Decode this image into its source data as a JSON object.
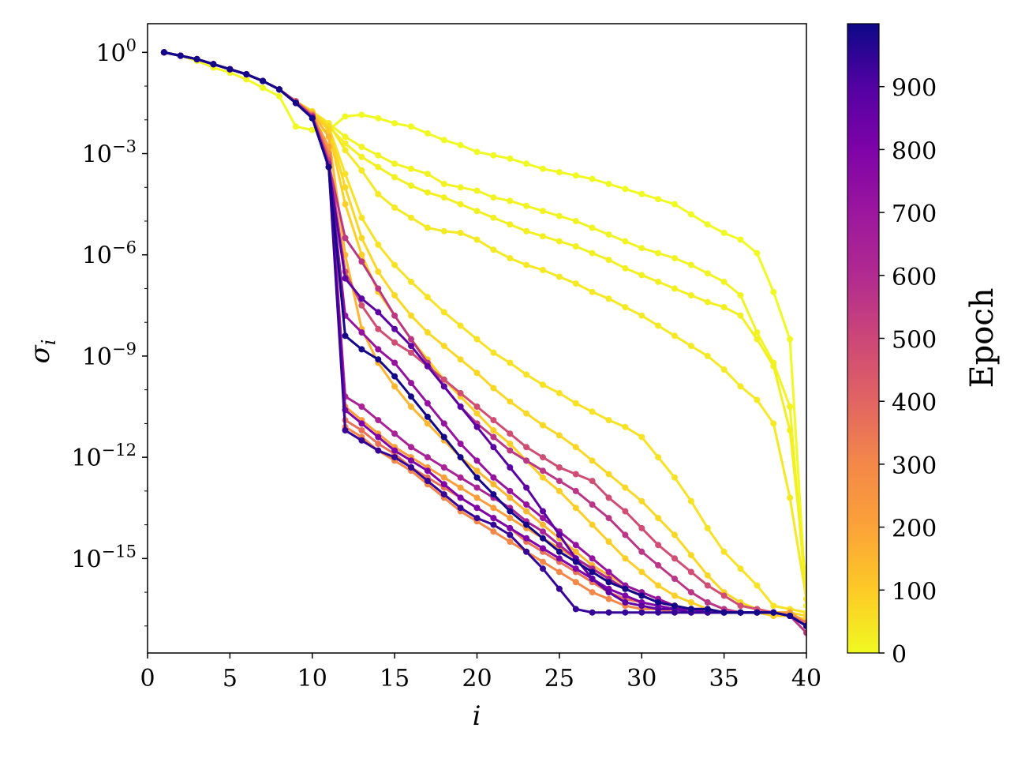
{
  "chart_data": {
    "type": "line",
    "xlabel": "i",
    "ylabel": "σ_i",
    "xlim": [
      0,
      40
    ],
    "ylim_log10": [
      -17.8,
      0.85
    ],
    "y_scale": "log",
    "grid": false,
    "x_ticks": [
      0,
      5,
      10,
      15,
      20,
      25,
      30,
      35,
      40
    ],
    "x_tick_labels": [
      "0",
      "5",
      "10",
      "15",
      "20",
      "25",
      "30",
      "35",
      "40"
    ],
    "y_ticks_log10": [
      0,
      -3,
      -6,
      -9,
      -12,
      -15
    ],
    "y_tick_base": "10",
    "y_tick_exponents": [
      "0",
      "−3",
      "−6",
      "−9",
      "−12",
      "−15"
    ],
    "colorbar": {
      "label": "Epoch",
      "colormap": "plasma",
      "range": [
        0,
        1000
      ],
      "ticks": [
        0,
        100,
        200,
        300,
        400,
        500,
        600,
        700,
        800,
        900
      ],
      "tick_labels": [
        "0",
        "100",
        "200",
        "300",
        "400",
        "500",
        "600",
        "700",
        "800",
        "900"
      ]
    },
    "series_note_values_are_log10_sigma": true,
    "series": [
      {
        "epoch": 0,
        "values": [
          0,
          -0.1,
          -0.25,
          -0.45,
          -0.6,
          -0.8,
          -1.05,
          -1.3,
          -2.2,
          -2.3,
          -2.3,
          -1.9,
          -1.85,
          -1.95,
          -2.1,
          -2.2,
          -2.4,
          -2.6,
          -2.75,
          -2.95,
          -3.05,
          -3.15,
          -3.3,
          -3.45,
          -3.55,
          -3.65,
          -3.75,
          -3.9,
          -4.05,
          -4.2,
          -4.35,
          -4.5,
          -4.8,
          -5.1,
          -5.35,
          -5.55,
          -5.95,
          -7.1,
          -8.5,
          -16.4
        ]
      },
      {
        "epoch": 10,
        "values": [
          0,
          -0.1,
          -0.2,
          -0.35,
          -0.5,
          -0.65,
          -0.85,
          -1.1,
          -1.45,
          -1.8,
          -2.1,
          -2.5,
          -2.8,
          -3.05,
          -3.3,
          -3.45,
          -3.6,
          -3.9,
          -4.0,
          -4.1,
          -4.3,
          -4.4,
          -4.55,
          -4.7,
          -4.85,
          -5.0,
          -5.2,
          -5.4,
          -5.6,
          -5.8,
          -5.95,
          -6.1,
          -6.3,
          -6.55,
          -6.8,
          -7.2,
          -8.3,
          -9.2,
          -10.5,
          -16.4
        ]
      },
      {
        "epoch": 20,
        "values": [
          0,
          -0.1,
          -0.2,
          -0.35,
          -0.5,
          -0.65,
          -0.85,
          -1.1,
          -1.45,
          -1.75,
          -2.2,
          -2.7,
          -3.1,
          -3.4,
          -3.7,
          -3.95,
          -4.15,
          -4.3,
          -4.5,
          -4.7,
          -4.9,
          -5.1,
          -5.3,
          -5.45,
          -5.6,
          -5.75,
          -5.95,
          -6.15,
          -6.4,
          -6.6,
          -6.8,
          -7.0,
          -7.2,
          -7.4,
          -7.55,
          -7.8,
          -8.5,
          -9.3,
          -11.2,
          -15.8
        ]
      },
      {
        "epoch": 35,
        "values": [
          0,
          -0.1,
          -0.2,
          -0.35,
          -0.5,
          -0.65,
          -0.85,
          -1.1,
          -1.45,
          -1.75,
          -2.1,
          -2.9,
          -3.5,
          -4.2,
          -4.6,
          -4.9,
          -5.2,
          -5.3,
          -5.35,
          -5.55,
          -5.85,
          -6.1,
          -6.3,
          -6.45,
          -6.65,
          -6.85,
          -7.1,
          -7.3,
          -7.55,
          -7.8,
          -8.1,
          -8.4,
          -8.7,
          -9.0,
          -9.4,
          -9.9,
          -10.3,
          -11.0,
          -13.2,
          -16.2
        ]
      },
      {
        "epoch": 50,
        "values": [
          0,
          -0.1,
          -0.2,
          -0.35,
          -0.5,
          -0.65,
          -0.85,
          -1.1,
          -1.45,
          -1.75,
          -2.2,
          -3.6,
          -4.9,
          -5.7,
          -6.3,
          -6.8,
          -7.25,
          -7.7,
          -8.1,
          -8.5,
          -8.9,
          -9.2,
          -9.55,
          -9.85,
          -10.1,
          -10.4,
          -10.65,
          -10.9,
          -11.1,
          -11.4,
          -12.0,
          -12.6,
          -13.3,
          -14.1,
          -14.8,
          -15.3,
          -15.8,
          -16.4,
          -16.5,
          -16.6
        ]
      },
      {
        "epoch": 70,
        "values": [
          0,
          -0.1,
          -0.2,
          -0.35,
          -0.5,
          -0.65,
          -0.85,
          -1.1,
          -1.45,
          -1.75,
          -2.2,
          -4.0,
          -5.5,
          -6.5,
          -7.2,
          -7.8,
          -8.3,
          -8.7,
          -9.1,
          -9.5,
          -9.95,
          -10.35,
          -10.7,
          -11.05,
          -11.35,
          -11.7,
          -12.1,
          -12.5,
          -12.9,
          -13.3,
          -13.8,
          -14.3,
          -14.9,
          -15.5,
          -16.0,
          -16.3,
          -16.5,
          -16.6,
          -16.6,
          -16.7
        ]
      },
      {
        "epoch": 90,
        "values": [
          0,
          -0.1,
          -0.2,
          -0.35,
          -0.5,
          -0.65,
          -0.85,
          -1.1,
          -1.45,
          -1.8,
          -2.3,
          -4.5,
          -6.0,
          -7.1,
          -7.8,
          -8.5,
          -9.1,
          -9.7,
          -10.2,
          -10.7,
          -11.2,
          -11.6,
          -12.1,
          -12.6,
          -13.0,
          -13.5,
          -14.0,
          -14.5,
          -15.0,
          -15.4,
          -15.8,
          -16.1,
          -16.3,
          -16.5,
          -16.6,
          -16.6,
          -16.6,
          -16.7,
          -16.7,
          -16.8
        ]
      },
      {
        "epoch": 150,
        "values": [
          0,
          -0.1,
          -0.2,
          -0.35,
          -0.5,
          -0.65,
          -0.85,
          -1.1,
          -1.45,
          -1.8,
          -2.5,
          -6.0,
          -8.2,
          -9.2,
          -9.9,
          -10.5,
          -11.0,
          -11.5,
          -12.0,
          -12.4,
          -12.8,
          -13.2,
          -13.6,
          -14.0,
          -14.4,
          -14.8,
          -15.2,
          -15.5,
          -15.8,
          -16.0,
          -16.2,
          -16.4,
          -16.5,
          -16.5,
          -16.6,
          -16.6,
          -16.6,
          -16.6,
          -16.6,
          -16.9
        ]
      },
      {
        "epoch": 220,
        "values": [
          0,
          -0.1,
          -0.2,
          -0.35,
          -0.5,
          -0.65,
          -0.85,
          -1.1,
          -1.45,
          -1.85,
          -2.8,
          -10.5,
          -10.9,
          -11.3,
          -11.7,
          -12.0,
          -12.3,
          -12.6,
          -12.9,
          -13.2,
          -13.5,
          -13.8,
          -14.1,
          -14.4,
          -14.7,
          -15.0,
          -15.3,
          -15.6,
          -15.9,
          -16.1,
          -16.3,
          -16.4,
          -16.5,
          -16.5,
          -16.6,
          -16.6,
          -16.6,
          -16.6,
          -16.6,
          -16.9
        ]
      },
      {
        "epoch": 300,
        "values": [
          0,
          -0.1,
          -0.2,
          -0.35,
          -0.5,
          -0.65,
          -0.85,
          -1.1,
          -1.45,
          -1.85,
          -3.0,
          -11.1,
          -11.4,
          -11.8,
          -12.1,
          -12.4,
          -12.8,
          -13.2,
          -13.6,
          -13.9,
          -14.2,
          -14.5,
          -14.8,
          -15.1,
          -15.4,
          -15.7,
          -16.0,
          -16.2,
          -16.4,
          -16.5,
          -16.5,
          -16.6,
          -16.6,
          -16.6,
          -16.6,
          -16.6,
          -16.6,
          -16.6,
          -16.7,
          -17.0
        ]
      },
      {
        "epoch": 360,
        "values": [
          0,
          -0.1,
          -0.2,
          -0.35,
          -0.5,
          -0.65,
          -0.85,
          -1.1,
          -1.45,
          -1.85,
          -3.1,
          -10.9,
          -11.2,
          -11.6,
          -11.9,
          -12.3,
          -12.6,
          -12.9,
          -13.2,
          -13.5,
          -13.8,
          -14.1,
          -14.5,
          -14.8,
          -15.1,
          -15.4,
          -15.7,
          -16.0,
          -16.2,
          -16.3,
          -16.4,
          -16.5,
          -16.5,
          -16.6,
          -16.6,
          -16.6,
          -16.6,
          -16.6,
          -16.7,
          -16.9
        ]
      },
      {
        "epoch": 480,
        "values": [
          0,
          -0.1,
          -0.2,
          -0.35,
          -0.5,
          -0.65,
          -0.85,
          -1.1,
          -1.45,
          -1.9,
          -3.2,
          -6.5,
          -7.5,
          -8.2,
          -8.6,
          -8.9,
          -9.3,
          -9.7,
          -10.1,
          -10.5,
          -10.9,
          -11.3,
          -11.7,
          -12.0,
          -12.3,
          -12.5,
          -12.7,
          -13.2,
          -13.6,
          -14.1,
          -14.6,
          -15.0,
          -15.4,
          -15.8,
          -16.1,
          -16.4,
          -16.5,
          -16.6,
          -16.7,
          -17.0
        ]
      },
      {
        "epoch": 560,
        "values": [
          0,
          -0.1,
          -0.2,
          -0.35,
          -0.5,
          -0.65,
          -0.85,
          -1.1,
          -1.5,
          -1.9,
          -3.3,
          -5.5,
          -6.2,
          -7.0,
          -7.8,
          -8.5,
          -9.2,
          -9.9,
          -10.5,
          -11.0,
          -11.4,
          -11.8,
          -12.1,
          -12.4,
          -12.7,
          -13.0,
          -13.4,
          -13.8,
          -14.3,
          -14.8,
          -15.2,
          -15.6,
          -16.0,
          -16.3,
          -16.5,
          -16.6,
          -16.6,
          -16.6,
          -16.7,
          -17.2
        ]
      },
      {
        "epoch": 640,
        "values": [
          0,
          -0.1,
          -0.2,
          -0.35,
          -0.5,
          -0.65,
          -0.85,
          -1.1,
          -1.5,
          -1.9,
          -3.3,
          -10.2,
          -10.5,
          -10.9,
          -11.3,
          -11.7,
          -12.0,
          -12.3,
          -12.6,
          -12.9,
          -13.2,
          -13.5,
          -13.9,
          -14.2,
          -14.6,
          -15.0,
          -15.3,
          -15.6,
          -15.9,
          -16.1,
          -16.3,
          -16.4,
          -16.5,
          -16.5,
          -16.6,
          -16.6,
          -16.6,
          -16.6,
          -16.7,
          -17.0
        ]
      },
      {
        "epoch": 720,
        "values": [
          0,
          -0.1,
          -0.2,
          -0.35,
          -0.5,
          -0.65,
          -0.85,
          -1.1,
          -1.5,
          -1.95,
          -3.4,
          -7.8,
          -8.3,
          -8.8,
          -9.2,
          -9.8,
          -10.4,
          -11.0,
          -11.6,
          -12.1,
          -12.6,
          -13.0,
          -13.4,
          -13.8,
          -14.2,
          -14.6,
          -15.0,
          -15.4,
          -15.8,
          -16.0,
          -16.2,
          -16.4,
          -16.5,
          -16.5,
          -16.6,
          -16.6,
          -16.6,
          -16.6,
          -16.7,
          -17.0
        ]
      },
      {
        "epoch": 800,
        "values": [
          0,
          -0.1,
          -0.2,
          -0.35,
          -0.5,
          -0.65,
          -0.85,
          -1.1,
          -1.5,
          -1.95,
          -3.4,
          -10.6,
          -11.0,
          -11.4,
          -11.8,
          -12.1,
          -12.4,
          -12.8,
          -13.2,
          -13.5,
          -13.8,
          -14.1,
          -14.4,
          -14.7,
          -15.0,
          -15.3,
          -15.6,
          -15.9,
          -16.1,
          -16.3,
          -16.4,
          -16.5,
          -16.5,
          -16.6,
          -16.6,
          -16.6,
          -16.6,
          -16.6,
          -16.7,
          -17.0
        ]
      },
      {
        "epoch": 880,
        "values": [
          0,
          -0.1,
          -0.2,
          -0.35,
          -0.5,
          -0.65,
          -0.85,
          -1.1,
          -1.5,
          -1.95,
          -3.4,
          -6.7,
          -7.3,
          -7.7,
          -8.2,
          -8.7,
          -9.3,
          -9.9,
          -10.5,
          -11.1,
          -11.7,
          -12.3,
          -12.9,
          -13.6,
          -14.3,
          -15.0,
          -15.6,
          -16.0,
          -16.3,
          -16.4,
          -16.5,
          -16.5,
          -16.6,
          -16.6,
          -16.6,
          -16.6,
          -16.6,
          -16.6,
          -16.7,
          -17.0
        ]
      },
      {
        "epoch": 940,
        "values": [
          0,
          -0.1,
          -0.2,
          -0.35,
          -0.5,
          -0.65,
          -0.85,
          -1.1,
          -1.5,
          -1.95,
          -3.4,
          -11.2,
          -11.5,
          -11.8,
          -12.0,
          -12.3,
          -12.7,
          -13.1,
          -13.5,
          -13.8,
          -14.0,
          -14.3,
          -14.8,
          -15.3,
          -15.9,
          -16.5,
          -16.6,
          -16.6,
          -16.6,
          -16.6,
          -16.6,
          -16.6,
          -16.6,
          -16.6,
          -16.6,
          -16.6,
          -16.6,
          -16.6,
          -16.7,
          -17.0
        ]
      },
      {
        "epoch": 990,
        "values": [
          0,
          -0.1,
          -0.2,
          -0.35,
          -0.5,
          -0.65,
          -0.85,
          -1.1,
          -1.5,
          -1.95,
          -3.4,
          -8.4,
          -8.8,
          -9.1,
          -9.6,
          -10.2,
          -10.8,
          -11.4,
          -12.0,
          -12.6,
          -13.1,
          -13.6,
          -14.0,
          -14.4,
          -14.8,
          -15.1,
          -15.4,
          -15.7,
          -15.9,
          -16.1,
          -16.3,
          -16.4,
          -16.5,
          -16.5,
          -16.6,
          -16.6,
          -16.6,
          -16.6,
          -16.7,
          -17.0
        ]
      }
    ]
  }
}
